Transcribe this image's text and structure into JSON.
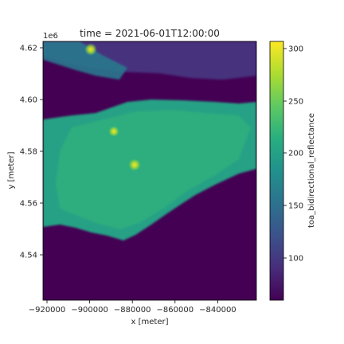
{
  "chart_data": {
    "type": "heatmap",
    "title": "time = 2021-06-01T12:00:00",
    "xlabel": "x [meter]",
    "ylabel": "y [meter]",
    "y_offset_label": "1e6",
    "colorbar_label": "toa_bidirectional_reflectance",
    "colormap": "viridis",
    "xlim": [
      -922000,
      -822000
    ],
    "ylim": [
      4.5225,
      4.6225
    ],
    "clim": [
      58,
      305
    ],
    "x_ticks": [
      -920000,
      -900000,
      -880000,
      -860000,
      -840000
    ],
    "x_tick_labels": [
      "−920000",
      "−900000",
      "−880000",
      "−860000",
      "−840000"
    ],
    "y_ticks": [
      4.54,
      4.56,
      4.58,
      4.6,
      4.62
    ],
    "y_tick_labels": [
      "4.54",
      "4.56",
      "4.58",
      "4.60",
      "4.62"
    ],
    "colorbar_ticks": [
      100,
      150,
      200,
      250,
      300
    ],
    "colorbar_tick_labels": [
      "100",
      "150",
      "200",
      "250",
      "300"
    ],
    "grid": false,
    "approx_features": {
      "background_value": 70,
      "land_mass_value": 175,
      "land_mass_y_range": [
        4.548,
        4.604
      ],
      "bright_spots": [
        {
          "x": -879000,
          "y": 4.5745,
          "value": 300
        },
        {
          "x": -887000,
          "y": 4.5875,
          "value": 280
        },
        {
          "x": -899000,
          "y": 4.6195,
          "value": 260
        }
      ]
    }
  }
}
